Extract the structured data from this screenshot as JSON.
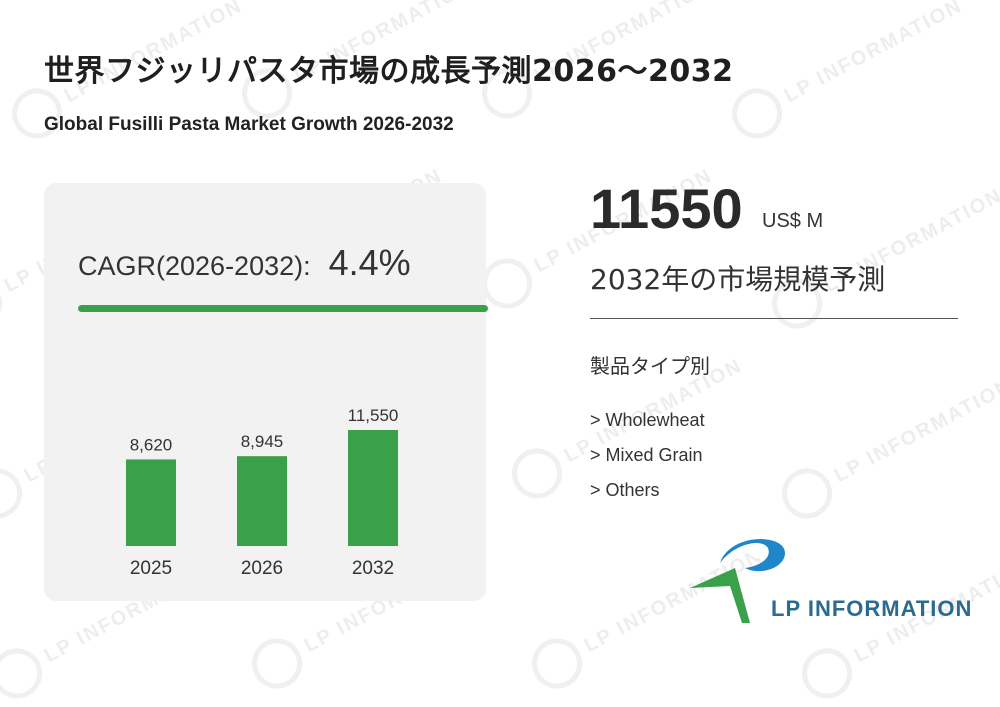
{
  "header": {
    "title": "世界フジッリパスタ市場の成長予測2026～2032",
    "subtitle": "Global Fusilli Pasta Market Growth 2026-2032"
  },
  "cagr": {
    "label": "CAGR(2026-2032):",
    "value": "4.4%"
  },
  "chart_data": {
    "type": "bar",
    "categories": [
      "2025",
      "2026",
      "2032"
    ],
    "values": [
      8620,
      8945,
      11550
    ],
    "value_labels": [
      "8,620",
      "8,945",
      "11,550"
    ],
    "title": "",
    "xlabel": "",
    "ylabel": "",
    "ylim": [
      0,
      11550
    ],
    "grid": false,
    "bar_color": "#3aa14a"
  },
  "forecast": {
    "value": "11550",
    "unit": "US$ M",
    "label": "2032年の市場規模予測"
  },
  "segments": {
    "title": "製品タイプ別",
    "items": [
      "> Wholewheat",
      "> Mixed Grain",
      "> Others"
    ]
  },
  "brand": {
    "name": "LP INFORMATION",
    "watermark_text": "LP INFORMATION",
    "logo_icon": "lp-information-logo-icon",
    "colors": {
      "green": "#3aa14a",
      "blue": "#2a6b8f",
      "accent_blue": "#1f86c9"
    }
  }
}
